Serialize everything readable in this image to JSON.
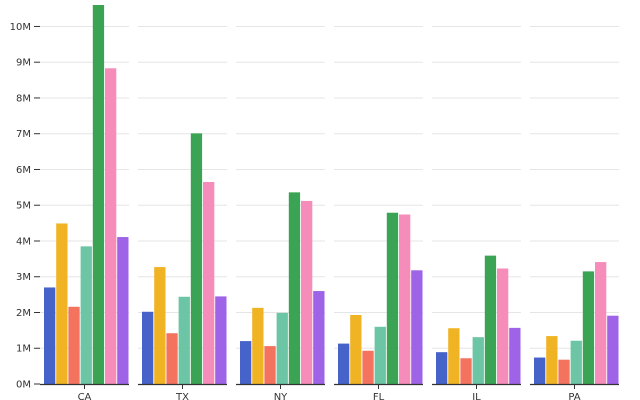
{
  "chart_data": {
    "type": "bar",
    "title": "",
    "xlabel": "",
    "ylabel": "",
    "ylim": [
      0,
      10600000
    ],
    "grid": true,
    "legend": "none",
    "y_ticks": [
      {
        "value": 0,
        "label": "0M"
      },
      {
        "value": 1000000,
        "label": "1M"
      },
      {
        "value": 2000000,
        "label": "2M"
      },
      {
        "value": 3000000,
        "label": "3M"
      },
      {
        "value": 4000000,
        "label": "4M"
      },
      {
        "value": 5000000,
        "label": "5M"
      },
      {
        "value": 6000000,
        "label": "6M"
      },
      {
        "value": 7000000,
        "label": "7M"
      },
      {
        "value": 8000000,
        "label": "8M"
      },
      {
        "value": 9000000,
        "label": "9M"
      },
      {
        "value": 10000000,
        "label": "10M"
      }
    ],
    "categories": [
      "CA",
      "TX",
      "NY",
      "FL",
      "IL",
      "PA"
    ],
    "series": [
      {
        "color": "#4563c9",
        "values": [
          2700000,
          2020000,
          1200000,
          1130000,
          890000,
          740000
        ]
      },
      {
        "color": "#f0b323",
        "values": [
          4490000,
          3270000,
          2130000,
          1930000,
          1560000,
          1340000
        ]
      },
      {
        "color": "#f4735f",
        "values": [
          2160000,
          1420000,
          1060000,
          930000,
          720000,
          680000
        ]
      },
      {
        "color": "#6cc5a4",
        "values": [
          3850000,
          2440000,
          1990000,
          1600000,
          1310000,
          1210000
        ]
      },
      {
        "color": "#3aa454",
        "values": [
          10600000,
          7010000,
          5360000,
          4790000,
          3590000,
          3150000
        ]
      },
      {
        "color": "#f58cba",
        "values": [
          8830000,
          5650000,
          5120000,
          4740000,
          3230000,
          3410000
        ]
      },
      {
        "color": "#9e63e6",
        "values": [
          4110000,
          2450000,
          2600000,
          3180000,
          1570000,
          1910000
        ]
      }
    ]
  }
}
